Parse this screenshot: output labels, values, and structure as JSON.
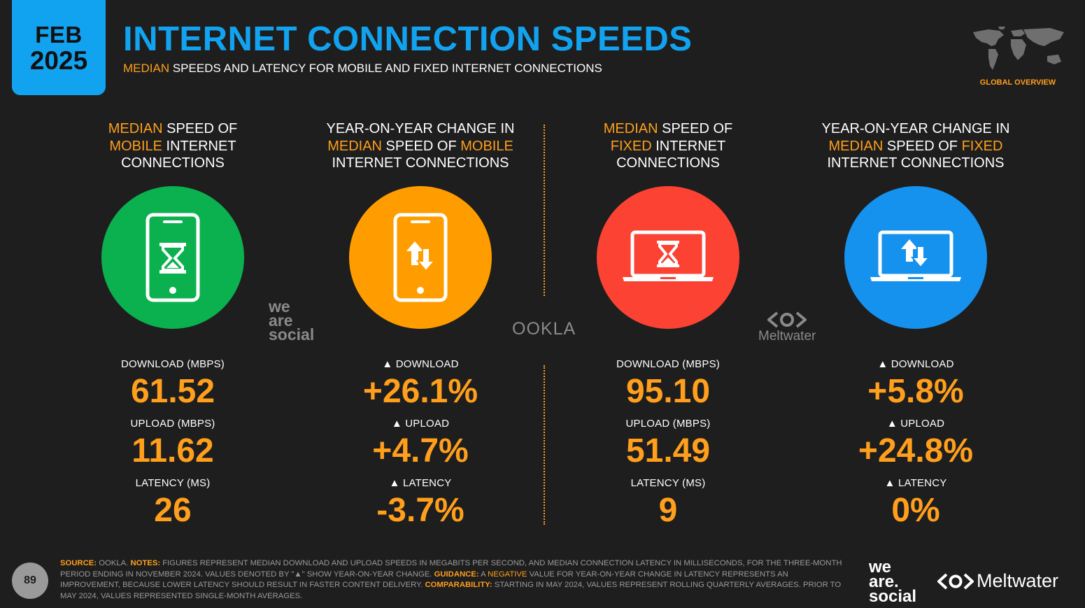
{
  "header": {
    "date_month": "FEB",
    "date_year": "2025",
    "title": "INTERNET CONNECTION SPEEDS",
    "subtitle_highlight": "MEDIAN",
    "subtitle_rest": " SPEEDS AND LATENCY FOR MOBILE AND FIXED INTERNET CONNECTIONS",
    "global_overview": "GLOBAL OVERVIEW"
  },
  "columns": [
    {
      "head_l1_a": "MEDIAN",
      "head_l1_b": " SPEED OF",
      "head_l2_a": "MOBILE",
      "head_l2_b": " INTERNET",
      "head_l3": "CONNECTIONS",
      "circle_color": "#0bb04f",
      "icon": "phone-hourglass-icon",
      "labels": [
        "DOWNLOAD (MBPS)",
        "UPLOAD (MBPS)",
        "LATENCY (MS)"
      ],
      "values": [
        "61.52",
        "11.62",
        "26"
      ]
    },
    {
      "head_l1_a": "",
      "head_l1_b": "YEAR-ON-YEAR CHANGE IN",
      "head_l2_a": "MEDIAN",
      "head_l2_b": " SPEED OF ",
      "head_l2_c": "MOBILE",
      "head_l3": "INTERNET CONNECTIONS",
      "circle_color": "#ff9d00",
      "icon": "phone-arrows-icon",
      "labels": [
        "▲ DOWNLOAD",
        "▲ UPLOAD",
        "▲ LATENCY"
      ],
      "values": [
        "+26.1%",
        "+4.7%",
        "-3.7%"
      ]
    },
    {
      "head_l1_a": "MEDIAN",
      "head_l1_b": " SPEED OF",
      "head_l2_a": "FIXED",
      "head_l2_b": " INTERNET",
      "head_l3": "CONNECTIONS",
      "circle_color": "#fb4233",
      "icon": "laptop-hourglass-icon",
      "labels": [
        "DOWNLOAD (MBPS)",
        "UPLOAD (MBPS)",
        "LATENCY (MS)"
      ],
      "values": [
        "95.10",
        "51.49",
        "9"
      ]
    },
    {
      "head_l1_a": "",
      "head_l1_b": "YEAR-ON-YEAR CHANGE IN",
      "head_l2_a": "MEDIAN",
      "head_l2_b": " SPEED OF ",
      "head_l2_c": "FIXED",
      "head_l3": "INTERNET CONNECTIONS",
      "circle_color": "#1591ee",
      "icon": "laptop-arrows-icon",
      "labels": [
        "▲ DOWNLOAD",
        "▲ UPLOAD",
        "▲ LATENCY"
      ],
      "values": [
        "+5.8%",
        "+24.8%",
        "0%"
      ]
    }
  ],
  "watermarks": {
    "we": "we",
    "are": "are",
    "social": "social",
    "ookla": "OOKLA",
    "meltwater": "Meltwater"
  },
  "footer": {
    "page_number": "89",
    "source_label": "SOURCE:",
    "source_text": " OOKLA. ",
    "notes_label": "NOTES:",
    "notes_text": " FIGURES REPRESENT MEDIAN DOWNLOAD AND UPLOAD SPEEDS IN MEGABITS PER SECOND, AND MEDIAN CONNECTION LATENCY IN MILLISECONDS, FOR THE THREE-MONTH PERIOD ENDING IN NOVEMBER 2024. VALUES DENOTED BY \"▲\" SHOW YEAR-ON-YEAR CHANGE. ",
    "guidance_label": "GUIDANCE:",
    "guidance_text_a": " A ",
    "guidance_negative": "NEGATIVE",
    "guidance_text_b": " VALUE FOR YEAR-ON-YEAR CHANGE IN LATENCY REPRESENTS AN IMPROVEMENT, BECAUSE LOWER LATENCY SHOULD RESULT IN FASTER CONTENT DELIVERY. ",
    "comparability_label": "COMPARABILITY:",
    "comparability_text": " STARTING IN MAY 2024, VALUES REPRESENT ROLLING QUARTERLY AVERAGES. PRIOR TO MAY 2024, VALUES REPRESENTED SINGLE-MONTH AVERAGES.",
    "brand_we": "we",
    "brand_are": "are.",
    "brand_social": "social",
    "brand_meltwater": "Meltwater"
  }
}
